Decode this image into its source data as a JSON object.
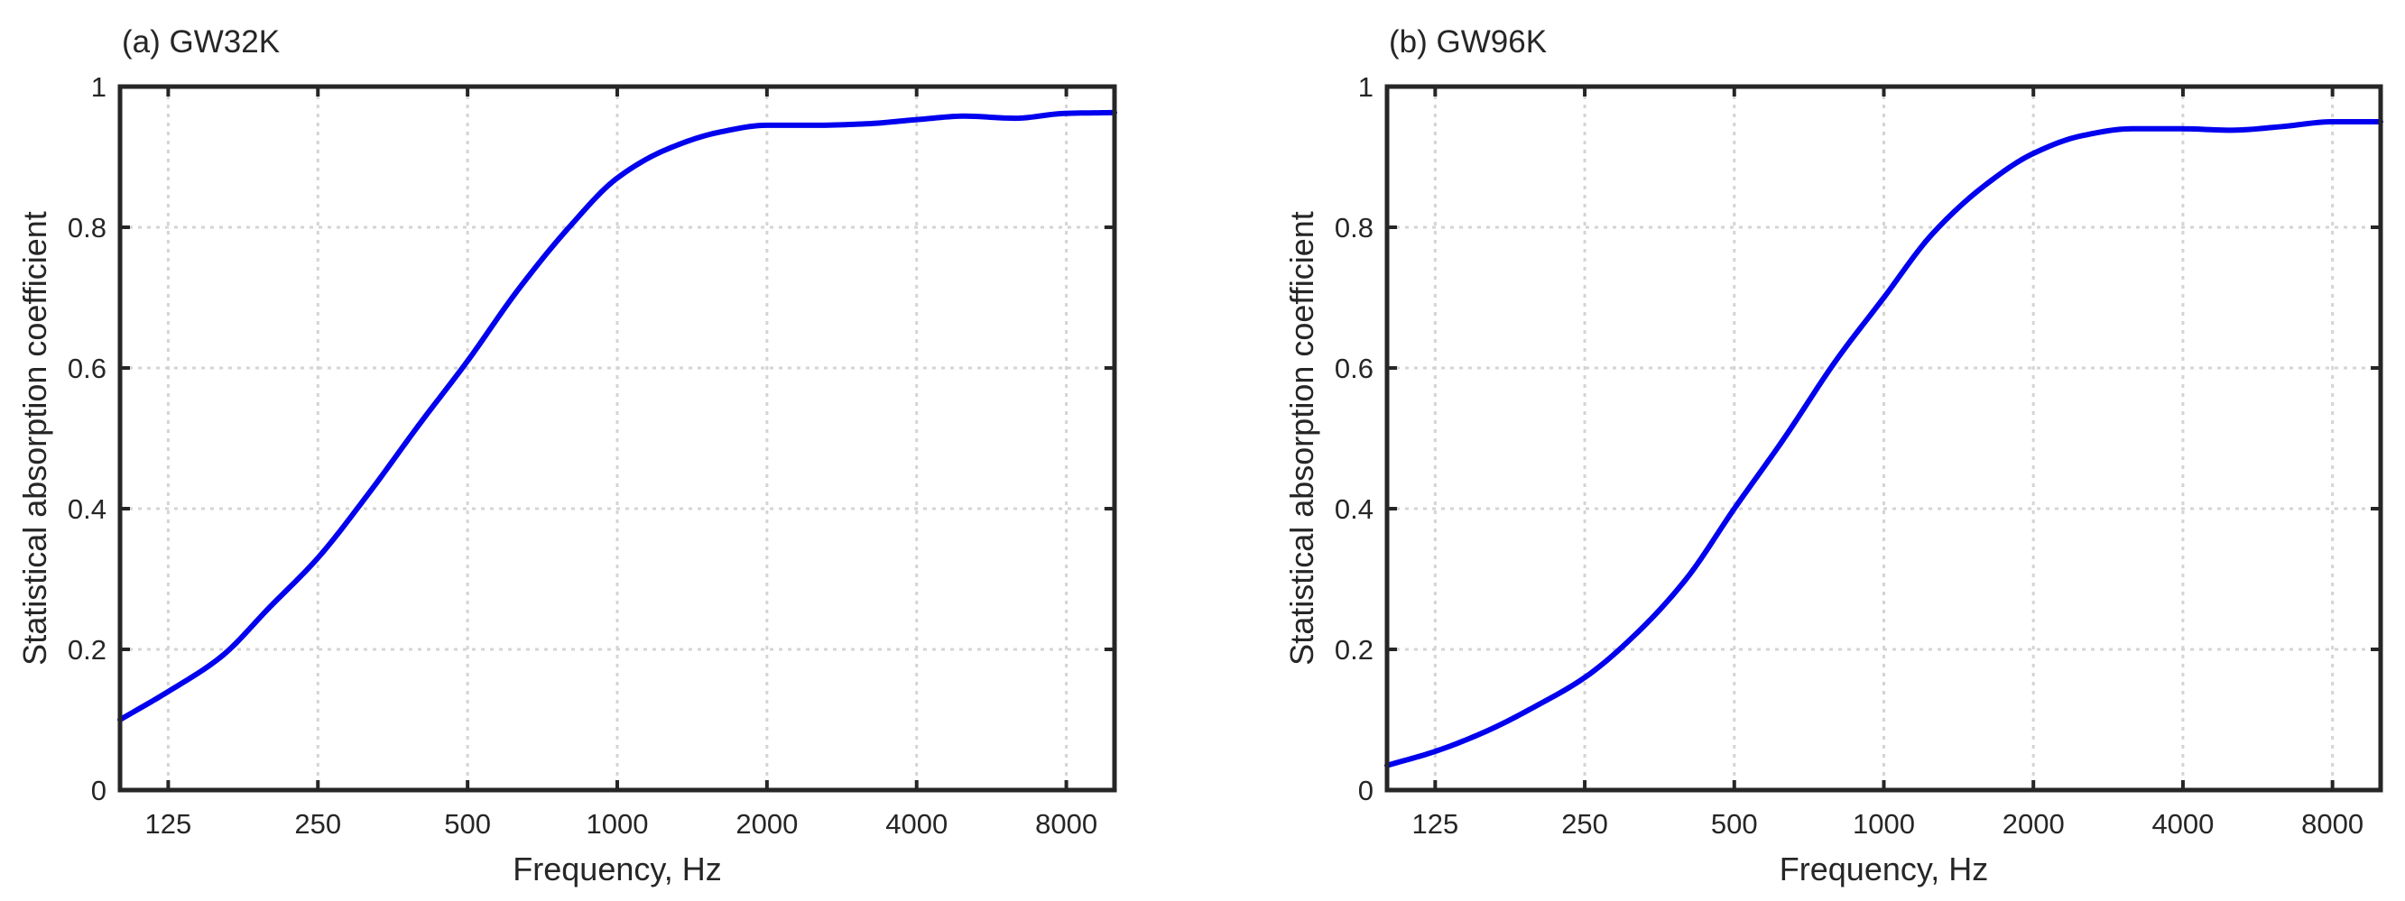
{
  "chart_data": [
    {
      "type": "line",
      "title": "(a) GW32K",
      "xlabel": "Frequency, Hz",
      "ylabel": "Statistical absorption coefficient",
      "x_scale": "log",
      "xlim": [
        100,
        10000
      ],
      "ylim": [
        0,
        1
      ],
      "x_ticks": [
        125,
        250,
        500,
        1000,
        2000,
        4000,
        8000
      ],
      "x_tick_labels": [
        "125",
        "250",
        "500",
        "1000",
        "2000",
        "4000",
        "8000"
      ],
      "y_ticks": [
        0,
        0.2,
        0.4,
        0.6,
        0.8,
        1
      ],
      "y_tick_labels": [
        "0",
        "0.2",
        "0.4",
        "0.6",
        "0.8",
        "1"
      ],
      "grid": true,
      "line_color": "#0000ee",
      "series": [
        {
          "x": [
            100,
            125,
            160,
            200,
            250,
            315,
            400,
            500,
            630,
            800,
            1000,
            1250,
            1600,
            2000,
            2500,
            3150,
            4000,
            5000,
            6300,
            8000,
            10000
          ],
          "y": [
            0.1,
            0.14,
            0.19,
            0.26,
            0.33,
            0.42,
            0.52,
            0.61,
            0.71,
            0.8,
            0.87,
            0.91,
            0.935,
            0.945,
            0.945,
            0.947,
            0.953,
            0.958,
            0.955,
            0.962,
            0.963
          ]
        }
      ]
    },
    {
      "type": "line",
      "title": "(b) GW96K",
      "xlabel": "Frequency, Hz",
      "ylabel": "Statistical absorption coefficient",
      "x_scale": "log",
      "xlim": [
        100,
        10000
      ],
      "ylim": [
        0,
        1
      ],
      "x_ticks": [
        125,
        250,
        500,
        1000,
        2000,
        4000,
        8000
      ],
      "x_tick_labels": [
        "125",
        "250",
        "500",
        "1000",
        "2000",
        "4000",
        "8000"
      ],
      "y_ticks": [
        0,
        0.2,
        0.4,
        0.6,
        0.8,
        1
      ],
      "y_tick_labels": [
        "0",
        "0.2",
        "0.4",
        "0.6",
        "0.8",
        "1"
      ],
      "grid": true,
      "line_color": "#0000ee",
      "series": [
        {
          "x": [
            100,
            125,
            160,
            200,
            250,
            315,
            400,
            500,
            630,
            800,
            1000,
            1250,
            1600,
            2000,
            2500,
            3150,
            4000,
            5000,
            6300,
            8000,
            10000
          ],
          "y": [
            0.035,
            0.055,
            0.085,
            0.12,
            0.16,
            0.22,
            0.3,
            0.4,
            0.5,
            0.61,
            0.7,
            0.79,
            0.86,
            0.905,
            0.93,
            0.94,
            0.94,
            0.938,
            0.943,
            0.95,
            0.95
          ]
        }
      ]
    }
  ]
}
